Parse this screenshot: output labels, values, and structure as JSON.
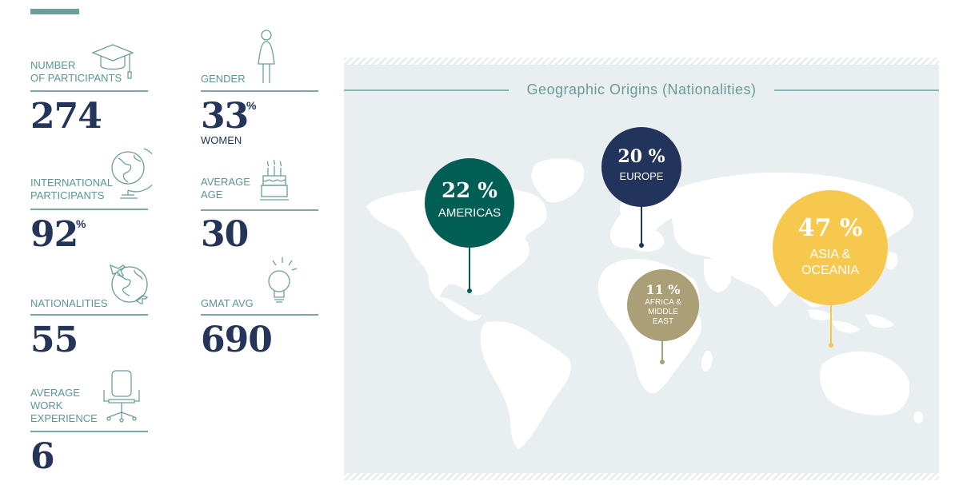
{
  "stats": {
    "participants": {
      "label": "NUMBER\nOF PARTICIPANTS",
      "value": "274",
      "icon": "graduation-cap-icon"
    },
    "international": {
      "label": "INTERNATIONAL\nPARTICIPANTS",
      "value": "92",
      "suffix": "%",
      "icon": "globe-icon"
    },
    "nationalities": {
      "label": "NATIONALITIES",
      "value": "55",
      "icon": "world-travel-icon"
    },
    "experience": {
      "label": "AVERAGE\nWORK\nEXPERIENCE",
      "value": "6",
      "icon": "office-chair-icon"
    },
    "gender": {
      "label": "GENDER",
      "value": "33",
      "suffix": "%",
      "sub": "WOMEN",
      "icon": "woman-icon"
    },
    "age": {
      "label": "AVERAGE\nAGE",
      "value": "30",
      "icon": "birthday-cake-icon"
    },
    "gmat": {
      "label": "GMAT AVG",
      "value": "690",
      "icon": "light-bulb-icon"
    }
  },
  "map": {
    "title": "Geographic Origins (Nationalities)",
    "regions": [
      {
        "pct": "22 %",
        "name": "AMERICAS",
        "color": "#015e55"
      },
      {
        "pct": "20 %",
        "name": "EUROPE",
        "color": "#22345b"
      },
      {
        "pct": "11 %",
        "name": "AFRICA &\nMIDDLE\nEAST",
        "color": "#ab9f77"
      },
      {
        "pct": "47 %",
        "name": "ASIA &\nOCEANIA",
        "color": "#f6c84e"
      }
    ]
  },
  "colors": {
    "teal": "#5b9693",
    "navy": "#243559",
    "map_bg": "#e9eef1"
  }
}
